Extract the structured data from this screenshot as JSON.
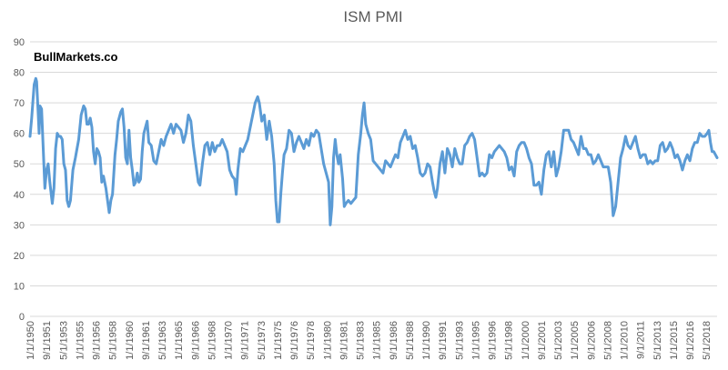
{
  "chart_data": {
    "type": "line",
    "title": "ISM PMI",
    "watermark": "BullMarkets.co",
    "color": "#5b9bd5",
    "grid": true,
    "ylim": [
      0,
      90
    ],
    "yticks": [
      0,
      10,
      20,
      30,
      40,
      50,
      60,
      70,
      80,
      90
    ],
    "xticks": [
      "1/1/1950",
      "9/1/1951",
      "5/1/1953",
      "1/1/1955",
      "9/1/1956",
      "5/1/1958",
      "1/1/1960",
      "9/1/1961",
      "5/1/1963",
      "1/1/1965",
      "9/1/1966",
      "5/1/1968",
      "1/1/1970",
      "9/1/1971",
      "5/1/1973",
      "1/1/1975",
      "9/1/1976",
      "5/1/1978",
      "1/1/1980",
      "9/1/1981",
      "5/1/1983",
      "1/1/1985",
      "9/1/1986",
      "5/1/1988",
      "1/1/1990",
      "9/1/1991",
      "5/1/1993",
      "1/1/1995",
      "9/1/1996",
      "5/1/1998",
      "1/1/2000",
      "9/1/2001",
      "5/1/2003",
      "1/1/2005",
      "9/1/2006",
      "5/1/2008",
      "1/1/2010",
      "9/1/2011",
      "5/1/2013",
      "1/1/2015",
      "9/1/2016",
      "5/1/2018"
    ],
    "x": [
      "1/1/1950",
      "3/1/1950",
      "6/1/1950",
      "8/1/1950",
      "9/1/1950",
      "11/1/1950",
      "12/1/1950",
      "1/1/1951",
      "3/1/1951",
      "5/1/1951",
      "7/1/1951",
      "9/1/1951",
      "11/1/1951",
      "1/1/1952",
      "4/1/1952",
      "6/1/1952",
      "8/1/1952",
      "10/1/1952",
      "12/1/1952",
      "2/1/1953",
      "4/1/1953",
      "6/1/1953",
      "8/1/1953",
      "10/1/1953",
      "12/1/1953",
      "2/1/1954",
      "5/1/1954",
      "8/1/1954",
      "10/1/1954",
      "12/1/1954",
      "3/1/1955",
      "6/1/1955",
      "8/1/1955",
      "10/1/1955",
      "12/1/1955",
      "2/1/1956",
      "4/1/1956",
      "6/1/1956",
      "8/1/1956",
      "10/1/1956",
      "12/1/1956",
      "2/1/1957",
      "4/1/1957",
      "6/1/1957",
      "9/1/1957",
      "11/1/1957",
      "1/1/1958",
      "3/1/1958",
      "5/1/1958",
      "8/1/1958",
      "10/1/1958",
      "12/1/1958",
      "3/1/1959",
      "5/1/1959",
      "7/1/1959",
      "9/1/1959",
      "11/1/1959",
      "1/1/1960",
      "3/1/1960",
      "5/1/1960",
      "7/1/1960",
      "9/1/1960",
      "11/1/1960",
      "1/1/1961",
      "3/1/1961",
      "5/1/1961",
      "7/1/1961",
      "9/1/1961",
      "11/1/1961",
      "1/1/1962",
      "4/1/1962",
      "7/1/1962",
      "10/1/1962",
      "1/1/1963",
      "4/1/1963",
      "7/1/1963",
      "10/1/1963",
      "1/1/1964",
      "4/1/1964",
      "7/1/1964",
      "10/1/1964",
      "1/1/1965",
      "4/1/1965",
      "7/1/1965",
      "10/1/1965",
      "1/1/1966",
      "4/1/1966",
      "7/1/1966",
      "10/1/1966",
      "1/1/1967",
      "3/1/1967",
      "6/1/1967",
      "9/1/1967",
      "12/1/1967",
      "3/1/1968",
      "6/1/1968",
      "9/1/1968",
      "12/1/1968",
      "3/1/1969",
      "6/1/1969",
      "9/1/1969",
      "12/1/1969",
      "3/1/1970",
      "6/1/1970",
      "9/1/1970",
      "11/1/1970",
      "1/1/1971",
      "4/1/1971",
      "7/1/1971",
      "10/1/1971",
      "1/1/1972",
      "4/1/1972",
      "7/1/1972",
      "10/1/1972",
      "1/1/1973",
      "3/1/1973",
      "6/1/1973",
      "9/1/1973",
      "12/1/1973",
      "3/1/1974",
      "6/1/1974",
      "9/1/1974",
      "11/1/1974",
      "1/1/1975",
      "3/1/1975",
      "5/1/1975",
      "7/1/1975",
      "9/1/1975",
      "12/1/1975",
      "3/1/1976",
      "6/1/1976",
      "9/1/1976",
      "12/1/1976",
      "3/1/1977",
      "6/1/1977",
      "9/1/1977",
      "12/1/1977",
      "3/1/1978",
      "6/1/1978",
      "9/1/1978",
      "12/1/1978",
      "3/1/1979",
      "6/1/1979",
      "9/1/1979",
      "12/1/1979",
      "3/1/1980",
      "5/1/1980",
      "7/1/1980",
      "9/1/1980",
      "11/1/1980",
      "1/1/1981",
      "3/1/1981",
      "5/1/1981",
      "8/1/1981",
      "10/1/1981",
      "12/1/1981",
      "3/1/1982",
      "6/1/1982",
      "9/1/1982",
      "12/1/1982",
      "3/1/1983",
      "6/1/1983",
      "8/1/1983",
      "10/1/1983",
      "12/1/1983",
      "3/1/1984",
      "6/1/1984",
      "9/1/1984",
      "12/1/1984",
      "3/1/1985",
      "6/1/1985",
      "9/1/1985",
      "12/1/1985",
      "3/1/1986",
      "6/1/1986",
      "9/1/1986",
      "12/1/1986",
      "3/1/1987",
      "6/1/1987",
      "9/1/1987",
      "12/1/1987",
      "3/1/1988",
      "6/1/1988",
      "9/1/1988",
      "12/1/1988",
      "3/1/1989",
      "6/1/1989",
      "9/1/1989",
      "12/1/1989",
      "3/1/1990",
      "6/1/1990",
      "9/1/1990",
      "11/1/1990",
      "1/1/1991",
      "3/1/1991",
      "6/1/1991",
      "9/1/1991",
      "12/1/1991",
      "3/1/1992",
      "6/1/1992",
      "9/1/1992",
      "12/1/1992",
      "3/1/1993",
      "6/1/1993",
      "9/1/1993",
      "12/1/1993",
      "3/1/1994",
      "6/1/1994",
      "9/1/1994",
      "12/1/1994",
      "3/1/1995",
      "6/1/1995",
      "9/1/1995",
      "12/1/1995",
      "3/1/1996",
      "6/1/1996",
      "9/1/1996",
      "12/1/1996",
      "3/1/1997",
      "6/1/1997",
      "9/1/1997",
      "12/1/1997",
      "3/1/1998",
      "6/1/1998",
      "9/1/1998",
      "12/1/1998",
      "3/1/1999",
      "6/1/1999",
      "9/1/1999",
      "12/1/1999",
      "3/1/2000",
      "6/1/2000",
      "9/1/2000",
      "12/1/2000",
      "3/1/2001",
      "6/1/2001",
      "9/1/2001",
      "12/1/2001",
      "3/1/2002",
      "6/1/2002",
      "9/1/2002",
      "12/1/2002",
      "3/1/2003",
      "6/1/2003",
      "9/1/2003",
      "12/1/2003",
      "3/1/2004",
      "6/1/2004",
      "9/1/2004",
      "12/1/2004",
      "3/1/2005",
      "6/1/2005",
      "9/1/2005",
      "12/1/2005",
      "3/1/2006",
      "6/1/2006",
      "9/1/2006",
      "12/1/2006",
      "3/1/2007",
      "6/1/2007",
      "9/1/2007",
      "12/1/2007",
      "3/1/2008",
      "6/1/2008",
      "9/1/2008",
      "11/1/2008",
      "12/1/2008",
      "3/1/2009",
      "6/1/2009",
      "9/1/2009",
      "12/1/2009",
      "3/1/2010",
      "6/1/2010",
      "9/1/2010",
      "12/1/2010",
      "3/1/2011",
      "6/1/2011",
      "9/1/2011",
      "12/1/2011",
      "3/1/2012",
      "6/1/2012",
      "9/1/2012",
      "12/1/2012",
      "3/1/2013",
      "6/1/2013",
      "9/1/2013",
      "12/1/2013",
      "3/1/2014",
      "6/1/2014",
      "9/1/2014",
      "12/1/2014",
      "3/1/2015",
      "6/1/2015",
      "9/1/2015",
      "12/1/2015",
      "3/1/2016",
      "6/1/2016",
      "9/1/2016",
      "12/1/2016",
      "3/1/2017",
      "6/1/2017",
      "9/1/2017",
      "12/1/2017",
      "3/1/2018",
      "6/1/2018",
      "8/1/2018",
      "10/1/2018",
      "12/1/2018",
      "2/1/2019",
      "4/1/2019",
      "6/1/2019"
    ],
    "values": [
      59,
      65,
      76,
      78,
      77,
      66,
      60,
      69,
      68,
      55,
      42,
      48,
      50,
      44,
      37,
      42,
      55,
      60,
      59,
      59,
      58,
      50,
      48,
      38,
      36,
      38,
      48,
      52,
      55,
      58,
      66,
      69,
      68,
      63,
      63,
      65,
      62,
      54,
      50,
      55,
      54,
      52,
      44,
      46,
      42,
      38,
      34,
      38,
      40,
      53,
      58,
      64,
      67,
      68,
      62,
      52,
      50,
      61,
      52,
      48,
      43,
      44,
      47,
      44,
      45,
      54,
      60,
      62,
      64,
      57,
      56,
      51,
      50,
      54,
      58,
      56,
      59,
      61,
      63,
      60,
      63,
      62,
      61,
      57,
      60,
      66,
      64,
      56,
      50,
      44,
      43,
      50,
      56,
      57,
      53,
      57,
      54,
      56,
      56,
      58,
      56,
      54,
      48,
      46,
      45,
      40,
      48,
      55,
      54,
      56,
      58,
      62,
      66,
      70,
      72,
      70,
      64,
      66,
      58,
      64,
      59,
      50,
      38,
      31,
      31,
      40,
      47,
      53,
      55,
      61,
      60,
      54,
      57,
      59,
      57,
      55,
      58,
      56,
      60,
      59,
      61,
      60,
      55,
      50,
      47,
      44,
      30,
      36,
      52,
      58,
      53,
      50,
      53,
      45,
      36,
      37,
      38,
      37,
      38,
      39,
      53,
      60,
      66,
      70,
      63,
      60,
      58,
      51,
      50,
      49,
      48,
      47,
      51,
      50,
      49,
      51,
      53,
      52,
      57,
      59,
      61,
      58,
      59,
      55,
      56,
      52,
      47,
      46,
      47,
      50,
      49,
      44,
      41,
      39,
      42,
      50,
      54,
      47,
      55,
      53,
      49,
      55,
      52,
      50,
      50,
      56,
      57,
      59,
      60,
      58,
      52,
      46,
      47,
      46,
      47,
      53,
      52,
      54,
      55,
      56,
      55,
      54,
      52,
      48,
      49,
      46,
      54,
      56,
      57,
      57,
      55,
      52,
      50,
      43,
      43,
      44,
      40,
      48,
      53,
      54,
      49,
      54,
      46,
      49,
      54,
      61,
      61,
      61,
      58,
      57,
      55,
      53,
      59,
      55,
      55,
      53,
      53,
      50,
      51,
      53,
      51,
      49,
      49,
      49,
      44,
      37,
      33,
      36,
      44,
      52,
      55,
      59,
      56,
      55,
      57,
      59,
      55,
      52,
      53,
      53,
      50,
      51,
      50,
      51,
      51,
      56,
      57,
      54,
      55,
      57,
      55,
      52,
      53,
      51,
      48,
      51,
      53,
      51,
      55,
      57,
      57,
      60,
      59,
      59,
      60,
      61,
      57,
      54,
      54,
      53,
      52
    ]
  }
}
